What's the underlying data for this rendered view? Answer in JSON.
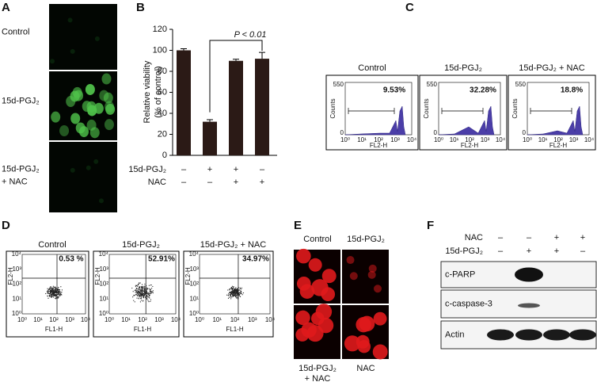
{
  "panel_a": {
    "letter": "A",
    "labels": [
      [
        "Control"
      ],
      [
        "15d-PGJ₂"
      ],
      [
        "15d-PGJ₂",
        "+ NAC"
      ]
    ]
  },
  "chart_data": {
    "type": "bar",
    "panel": "B",
    "y_label": [
      "Relative viability",
      "(% of control)"
    ],
    "values": [
      100,
      32,
      90,
      92
    ],
    "errors": [
      1.5,
      2,
      1.5,
      6
    ],
    "color": "#2b1a16",
    "ylim": [
      0,
      120
    ],
    "yticks": [
      0,
      20,
      40,
      60,
      80,
      100,
      120
    ],
    "annotation": "P < 0.01",
    "treatments": [
      {
        "name": "15d-PGJ₂",
        "signs": [
          "–",
          "+",
          "+",
          "–"
        ]
      },
      {
        "name": "NAC",
        "signs": [
          "–",
          "–",
          "+",
          "+"
        ]
      }
    ]
  },
  "panel_c": {
    "letter": "C",
    "y_label": "Counts",
    "y_ticks": [
      "0",
      "550"
    ],
    "x_label": "FL2-H",
    "x_ticks": [
      "10⁰",
      "10¹",
      "10²",
      "10³",
      "10⁴"
    ],
    "plots": [
      {
        "title": "Control",
        "percent": "9.53%"
      },
      {
        "title": "15d-PGJ₂",
        "percent": "32.28%"
      },
      {
        "title": "15d-PGJ₂ + NAC",
        "percent": "18.8%"
      }
    ]
  },
  "panel_d": {
    "letter": "D",
    "y_label": "FL2-H",
    "x_label": "FL1-H",
    "x_ticks": [
      "10⁰",
      "10¹",
      "10²",
      "10³",
      "10⁴"
    ],
    "y_ticks": [
      "10⁰",
      "10¹",
      "10²",
      "10³",
      "10⁴"
    ],
    "plots": [
      {
        "title": "Control",
        "percent": "0.53 %"
      },
      {
        "title": "15d-PGJ₂",
        "percent": "52.91%"
      },
      {
        "title": "15d-PGJ₂ + NAC",
        "percent": "34.97%"
      }
    ]
  },
  "panel_e": {
    "letter": "E",
    "top": [
      "Control",
      "15d-PGJ₂"
    ],
    "bottom": [
      [
        "15d-PGJ₂",
        "+ NAC"
      ],
      [
        "NAC"
      ]
    ]
  },
  "panel_f": {
    "letter": "F",
    "treatments": [
      {
        "name": "NAC",
        "signs": [
          "–",
          "–",
          "+",
          "+"
        ]
      },
      {
        "name": "15d-PGJ₂",
        "signs": [
          "–",
          "+",
          "+",
          "–"
        ]
      }
    ],
    "rows": [
      "c-PARP",
      "c-caspase-3",
      "Actin"
    ]
  }
}
